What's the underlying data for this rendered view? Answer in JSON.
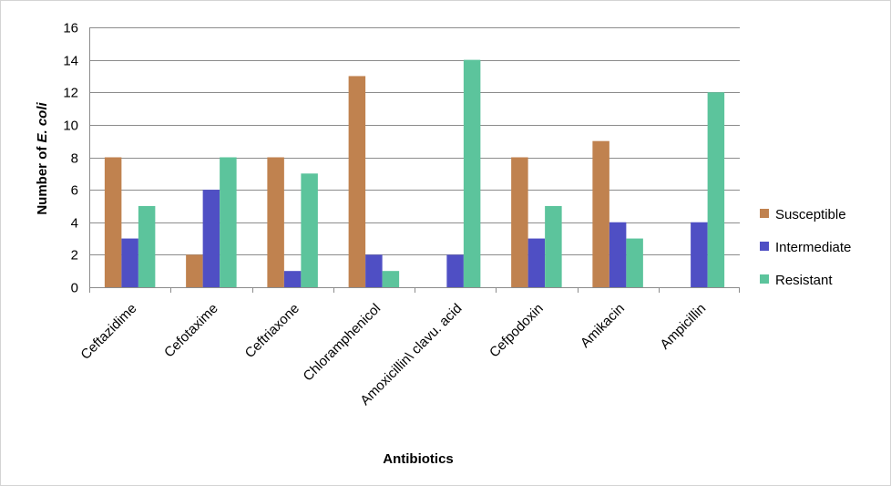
{
  "chart_data": {
    "type": "bar",
    "title": "",
    "xlabel": "Antibiotics",
    "ylabel_prefix": "Number of ",
    "ylabel_italic": "E. coli",
    "ylim": [
      0,
      16
    ],
    "yticks": [
      0,
      2,
      4,
      6,
      8,
      10,
      12,
      14,
      16
    ],
    "grid": true,
    "legend_position": "right",
    "categories": [
      "Ceftazidime",
      "Cefotaxime",
      "Ceftriaxone",
      "Chloramphenicol",
      "Amoxicillin\\ clavu. acid",
      "Cefpodoxin",
      "Amikacin",
      "Ampicillin"
    ],
    "series": [
      {
        "name": "Susceptible",
        "color": "#c0824f",
        "values": [
          8,
          2,
          8,
          13,
          0,
          8,
          9,
          0
        ]
      },
      {
        "name": "Intermediate",
        "color": "#4f4fc4",
        "values": [
          3,
          6,
          1,
          2,
          2,
          3,
          4,
          4
        ]
      },
      {
        "name": "Resistant",
        "color": "#5cc49c",
        "values": [
          5,
          8,
          7,
          1,
          14,
          5,
          3,
          12
        ]
      }
    ]
  }
}
